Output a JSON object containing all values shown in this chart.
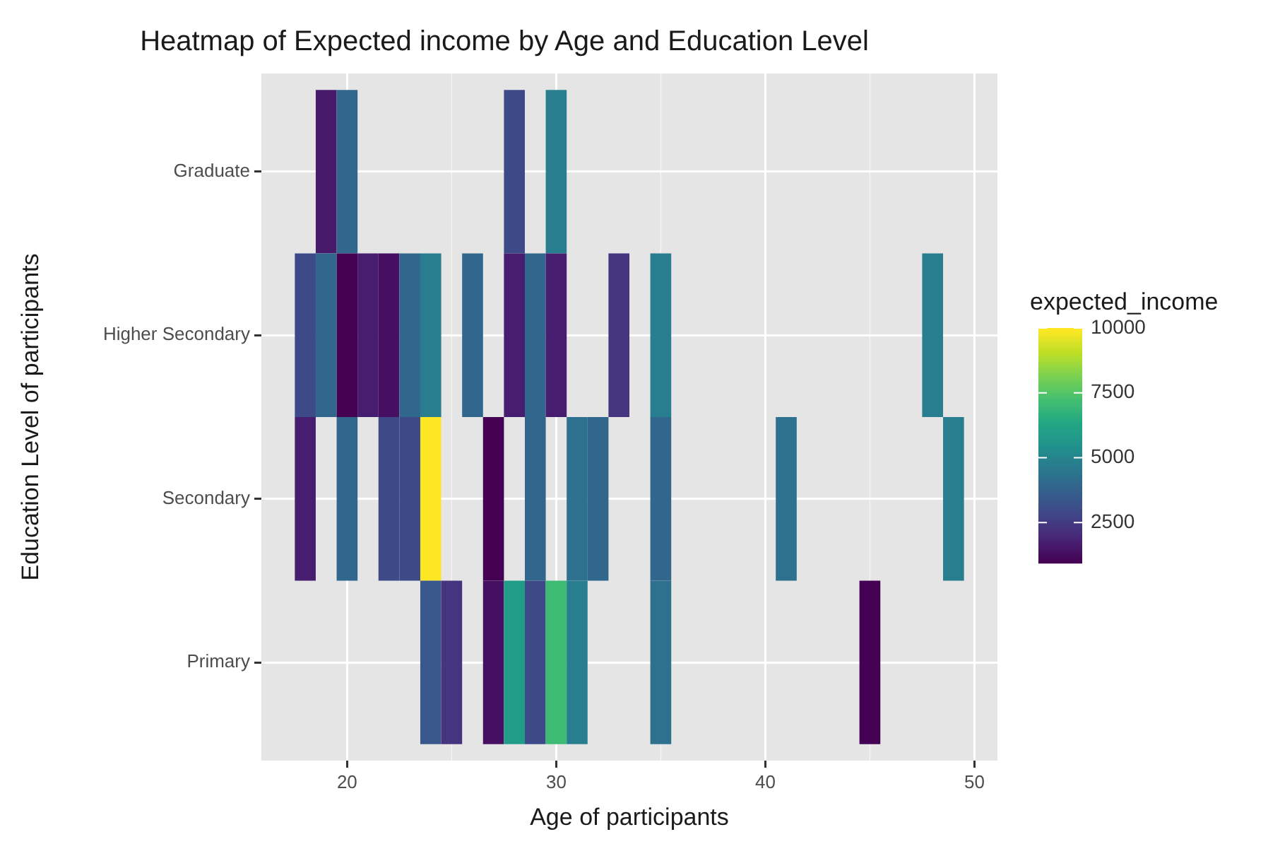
{
  "chart_data": {
    "type": "heatmap",
    "title": "Heatmap of Expected income by Age and Education Level",
    "xlabel": "Age of participants",
    "ylabel": "Education Level of participants",
    "clabel": "expected_income",
    "x": [
      18,
      19,
      20,
      21,
      22,
      23,
      24,
      25,
      26,
      27,
      28,
      29,
      30,
      31,
      32,
      33,
      34,
      35,
      36,
      40,
      41,
      42,
      44,
      45,
      46,
      47,
      48,
      49
    ],
    "y_categories": [
      "Graduate",
      "Higher Secondary",
      "Secondary",
      "Primary"
    ],
    "cells": [
      [
        null,
        1600,
        3950,
        null,
        null,
        null,
        null,
        null,
        null,
        null,
        2950,
        null,
        4750,
        null,
        null,
        null,
        null,
        null,
        null,
        null,
        null,
        null,
        null,
        null,
        null,
        null,
        null,
        null
      ],
      [
        2950,
        3950,
        950,
        1700,
        1300,
        3950,
        4750,
        null,
        3950,
        null,
        1700,
        3950,
        1700,
        null,
        null,
        2300,
        null,
        4750,
        null,
        null,
        null,
        null,
        null,
        null,
        null,
        null,
        4750,
        null
      ],
      [
        1700,
        null,
        3950,
        null,
        2950,
        2950,
        10000,
        null,
        null,
        950,
        null,
        3950,
        null,
        4300,
        3950,
        null,
        null,
        3950,
        null,
        null,
        4300,
        null,
        null,
        null,
        null,
        null,
        null,
        4750
      ],
      [
        null,
        null,
        null,
        null,
        null,
        null,
        3400,
        2300,
        null,
        1300,
        5900,
        2950,
        7100,
        4750,
        null,
        null,
        null,
        4300,
        null,
        null,
        null,
        null,
        null,
        950,
        null,
        null,
        null,
        null
      ]
    ],
    "xlim": [
      15.9,
      51.1
    ],
    "xticks": [
      20,
      30,
      40,
      50
    ],
    "clim": [
      950,
      10000
    ],
    "cticks": [
      2500,
      5000,
      7500,
      10000
    ],
    "grid": true
  }
}
